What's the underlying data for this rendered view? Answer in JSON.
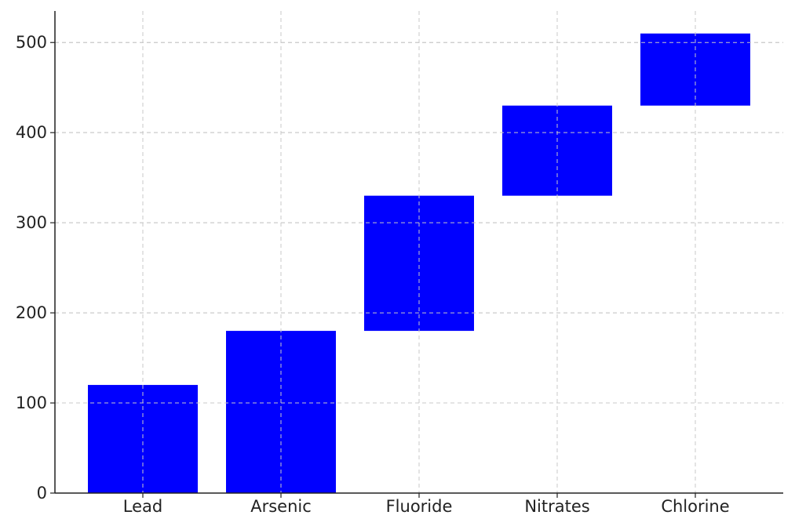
{
  "chart_data": {
    "type": "bar",
    "variant": "floating-range",
    "title": "",
    "xlabel": "",
    "ylabel": "",
    "categories": [
      "Lead",
      "Arsenic",
      "Fluoride",
      "Nitrates",
      "Chlorine"
    ],
    "series": [
      {
        "bottoms": [
          0,
          0,
          180,
          330,
          430
        ],
        "tops": [
          120,
          180,
          330,
          430,
          510
        ],
        "color": "#0000ff"
      }
    ],
    "ylim": [
      0,
      535
    ],
    "yticks": [
      0,
      100,
      200,
      300,
      400,
      500
    ],
    "grid": true,
    "legend": "none"
  }
}
